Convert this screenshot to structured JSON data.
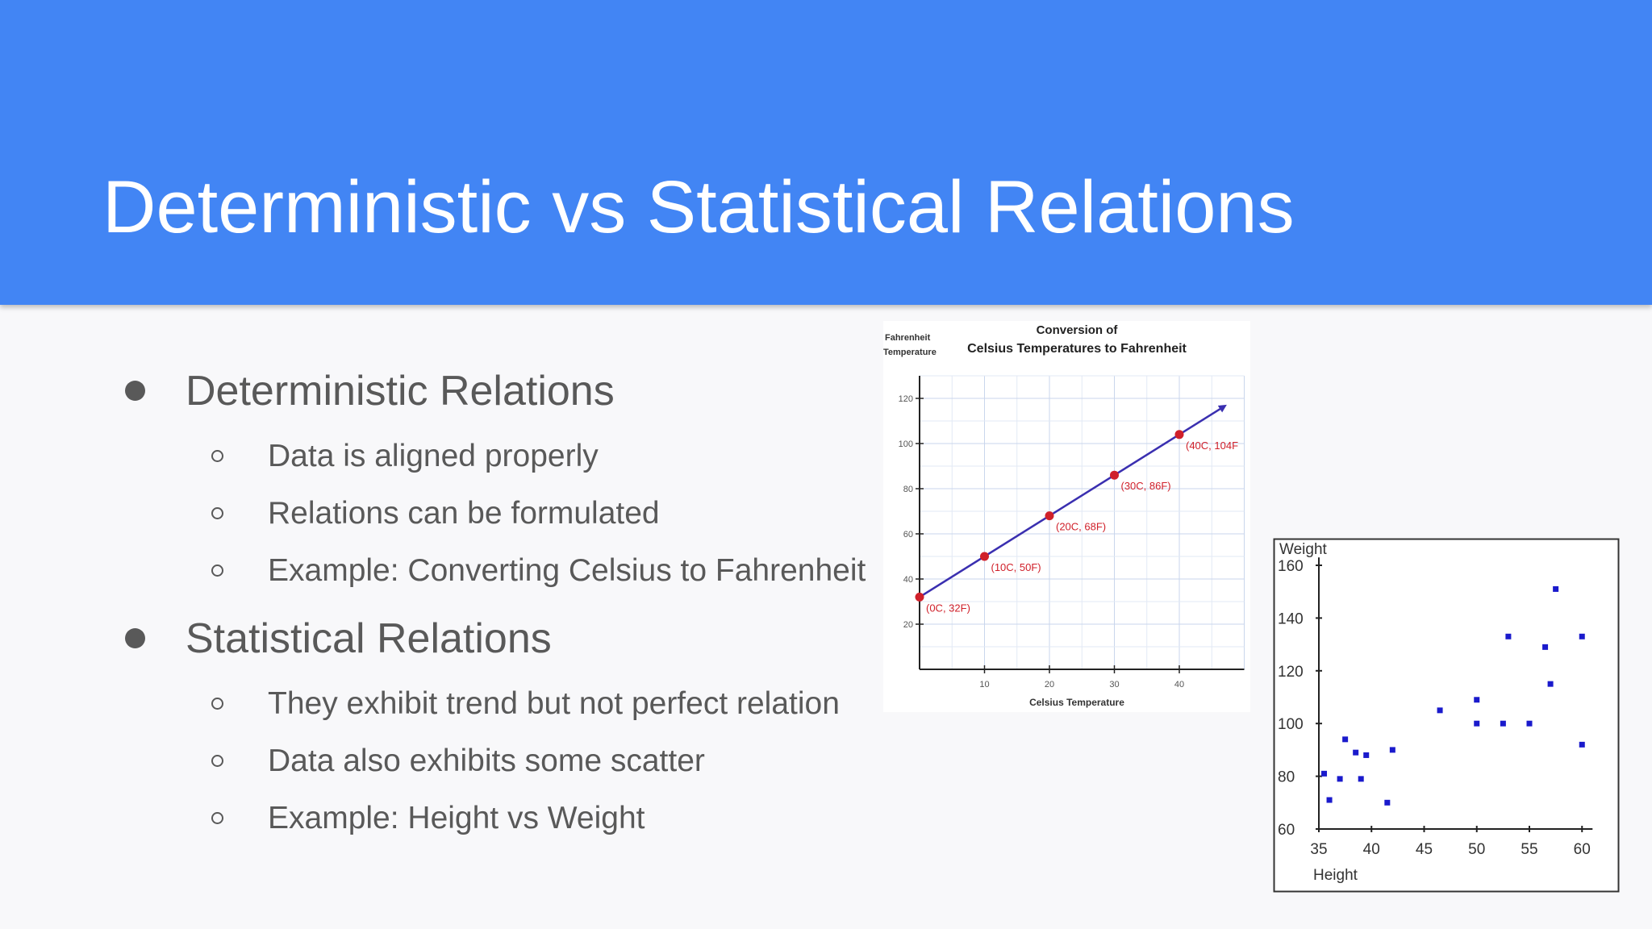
{
  "slide": {
    "title": "Deterministic vs Statistical Relations",
    "colors": {
      "header": "#4285f4",
      "background": "#f8f8fa",
      "body_text": "#595959"
    }
  },
  "bullets": [
    {
      "text": "Deterministic Relations",
      "sub": [
        "Data is aligned properly",
        "Relations can be formulated",
        "Example: Converting Celsius to Fahrenheit"
      ]
    },
    {
      "text": "Statistical Relations",
      "sub": [
        "They exhibit trend but not perfect relation",
        "Data also exhibits some scatter",
        "Example: Height vs Weight"
      ]
    }
  ],
  "chart_data": [
    {
      "type": "line",
      "title_line1": "Conversion of",
      "title_line2": "Celsius Temperatures to Fahrenheit",
      "ylabel_line1": "Fahrenheit",
      "ylabel_line2": "Temperature",
      "xlabel": "Celsius Temperature",
      "xlim": [
        -5,
        50
      ],
      "ylim": [
        0,
        130
      ],
      "xticks": [
        10,
        20,
        30,
        40
      ],
      "yticks": [
        20,
        40,
        60,
        80,
        100,
        120
      ],
      "grid": true,
      "line_color": "#3a2fb0",
      "point_color": "#d0202a",
      "x": [
        0,
        10,
        20,
        30,
        40
      ],
      "y": [
        32,
        50,
        68,
        86,
        104
      ],
      "point_labels": [
        "(0C, 32F)",
        "(10C, 50F)",
        "(20C, 68F)",
        "(30C, 86F)",
        "(40C, 104F"
      ]
    },
    {
      "type": "scatter",
      "ylabel": "Weight",
      "xlabel": "Height",
      "xlim": [
        33,
        61
      ],
      "ylim": [
        58,
        168
      ],
      "xticks": [
        35,
        40,
        45,
        50,
        55,
        60
      ],
      "yticks": [
        60,
        80,
        100,
        120,
        140,
        160
      ],
      "point_color": "#1a1acc",
      "points": [
        [
          35.5,
          81
        ],
        [
          36,
          71
        ],
        [
          37,
          79
        ],
        [
          37.5,
          94
        ],
        [
          38.5,
          89
        ],
        [
          39,
          79
        ],
        [
          39.5,
          88
        ],
        [
          41.5,
          70
        ],
        [
          42,
          90
        ],
        [
          46.5,
          105
        ],
        [
          50,
          100
        ],
        [
          50,
          109
        ],
        [
          52.5,
          100
        ],
        [
          53,
          133
        ],
        [
          55,
          100
        ],
        [
          56.5,
          129
        ],
        [
          57,
          115
        ],
        [
          57.5,
          151
        ],
        [
          60,
          133
        ],
        [
          60,
          92
        ]
      ]
    }
  ]
}
